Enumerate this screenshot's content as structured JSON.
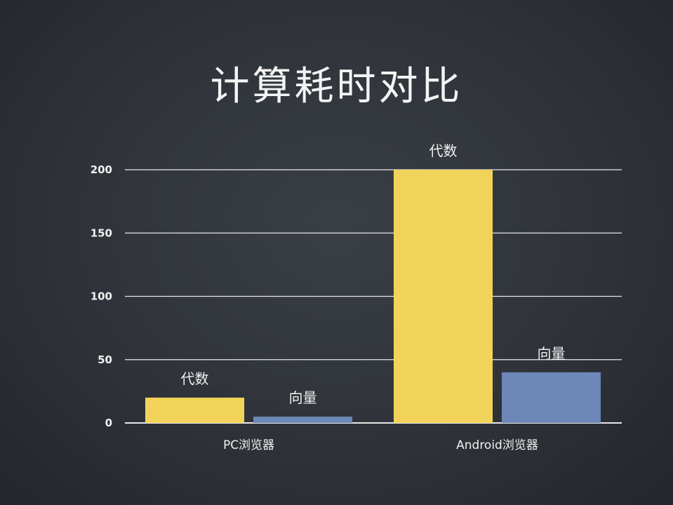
{
  "chart_data": {
    "type": "bar",
    "title": "计算耗时对比",
    "categories": [
      "PC浏览器",
      "Android浏览器"
    ],
    "series": [
      {
        "name": "代数",
        "values": [
          20,
          200
        ],
        "color": "#f2d35a"
      },
      {
        "name": "向量",
        "values": [
          5,
          40
        ],
        "color": "#6d88b8"
      }
    ],
    "ylim": [
      0,
      200
    ],
    "yticks": [
      0,
      50,
      100,
      150,
      200
    ],
    "grid": true,
    "legend": "none (labels above bars)"
  }
}
